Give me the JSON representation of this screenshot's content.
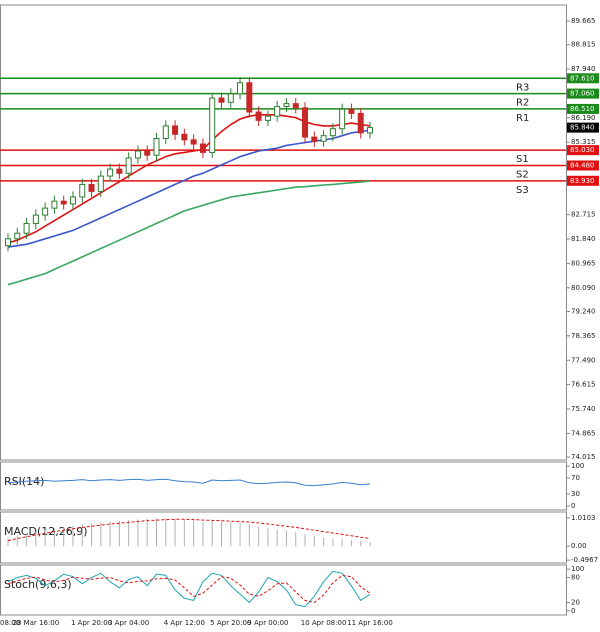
{
  "chart_data": [
    {
      "type": "candlestick",
      "categories": [
        "08:00",
        null,
        null,
        "28 Mar 16:00",
        null,
        null,
        null,
        null,
        null,
        "1 Apr 20:00",
        null,
        null,
        null,
        "3 Apr 04:00",
        null,
        null,
        null,
        null,
        null,
        "4 Apr 12:00",
        null,
        null,
        null,
        null,
        "5 Apr 20:00",
        null,
        null,
        null,
        "9 Apr 00:00",
        null,
        null,
        null,
        null,
        null,
        "10 Apr 08:00",
        null,
        null,
        null,
        null,
        "11 Apr 16:00"
      ],
      "open": [
        81.6,
        81.85,
        82.05,
        82.4,
        82.7,
        82.95,
        83.2,
        83.1,
        83.35,
        83.8,
        83.55,
        84.1,
        84.35,
        84.2,
        84.75,
        85.0,
        84.85,
        85.45,
        85.9,
        85.6,
        85.4,
        85.25,
        84.95,
        86.9,
        86.75,
        87.05,
        87.45,
        86.4,
        86.1,
        86.25,
        86.6,
        86.7,
        86.55,
        85.5,
        85.35,
        85.55,
        85.8,
        86.5,
        86.35,
        85.65
      ],
      "high": [
        82.05,
        82.25,
        82.6,
        82.9,
        83.15,
        83.4,
        83.4,
        83.55,
        84.0,
        84.0,
        84.3,
        84.55,
        84.55,
        84.95,
        85.2,
        85.2,
        85.65,
        86.1,
        86.1,
        85.8,
        85.6,
        85.45,
        87.1,
        87.1,
        87.25,
        87.65,
        87.65,
        86.6,
        86.45,
        86.8,
        86.9,
        86.9,
        86.75,
        85.7,
        85.75,
        86.0,
        86.7,
        86.7,
        86.55,
        86.04
      ],
      "low": [
        81.4,
        81.65,
        81.85,
        82.2,
        82.5,
        82.75,
        82.9,
        82.9,
        83.15,
        83.35,
        83.35,
        83.9,
        84.0,
        84.0,
        84.55,
        84.65,
        84.65,
        85.25,
        85.4,
        85.2,
        85.05,
        84.75,
        84.75,
        86.55,
        86.55,
        86.85,
        86.2,
        85.9,
        85.9,
        86.05,
        86.4,
        86.35,
        85.3,
        85.15,
        85.15,
        85.35,
        85.6,
        86.15,
        85.45,
        85.45
      ],
      "close": [
        81.85,
        82.05,
        82.4,
        82.7,
        82.95,
        83.2,
        83.1,
        83.35,
        83.8,
        83.55,
        84.1,
        84.35,
        84.2,
        84.75,
        85.0,
        84.85,
        85.45,
        85.9,
        85.6,
        85.4,
        85.25,
        84.95,
        86.9,
        86.75,
        87.05,
        87.45,
        86.4,
        86.1,
        86.25,
        86.6,
        86.7,
        86.55,
        85.5,
        85.35,
        85.55,
        85.8,
        86.5,
        86.35,
        85.65,
        85.84
      ],
      "up_color": "#2e7d32",
      "down_color": "#c62828",
      "series": [
        {
          "color": "#e01010",
          "values": [
            81.7,
            81.8,
            81.95,
            82.1,
            82.3,
            82.5,
            82.7,
            82.9,
            83.1,
            83.3,
            83.5,
            83.7,
            83.9,
            84.1,
            84.3,
            84.5,
            84.65,
            84.8,
            84.9,
            84.95,
            85.0,
            85.05,
            85.4,
            85.7,
            85.95,
            86.15,
            86.25,
            86.3,
            86.3,
            86.3,
            86.25,
            86.2,
            86.05,
            85.95,
            85.9,
            85.9,
            85.95,
            86.0,
            85.95,
            85.9
          ]
        },
        {
          "color": "#3a55cc",
          "values": [
            81.55,
            81.6,
            81.65,
            81.75,
            81.85,
            81.95,
            82.05,
            82.15,
            82.3,
            82.45,
            82.6,
            82.75,
            82.9,
            83.05,
            83.2,
            83.35,
            83.5,
            83.65,
            83.8,
            83.95,
            84.1,
            84.2,
            84.35,
            84.5,
            84.65,
            84.8,
            84.9,
            85.0,
            85.05,
            85.1,
            85.2,
            85.25,
            85.3,
            85.35,
            85.4,
            85.45,
            85.55,
            85.65,
            85.7,
            85.75
          ]
        },
        {
          "color": "#3aa860",
          "values": [
            80.2,
            80.3,
            80.4,
            80.5,
            80.6,
            80.75,
            80.9,
            81.05,
            81.2,
            81.35,
            81.5,
            81.65,
            81.8,
            81.95,
            82.1,
            82.25,
            82.4,
            82.55,
            82.7,
            82.85,
            82.95,
            83.05,
            83.15,
            83.25,
            83.35,
            83.4,
            83.45,
            83.5,
            83.55,
            83.6,
            83.65,
            83.7,
            83.72,
            83.75,
            83.78,
            83.8,
            83.83,
            83.86,
            83.89,
            83.92
          ]
        }
      ],
      "levels": [
        {
          "name": "R3",
          "value": 87.61,
          "label": "87.610",
          "color": "#1a8a1a"
        },
        {
          "name": "R2",
          "value": 87.06,
          "label": "87.060",
          "color": "#1a8a1a"
        },
        {
          "name": "R1",
          "value": 86.51,
          "label": "86.510",
          "color": "#1a8a1a"
        },
        {
          "name": "S1",
          "value": 85.03,
          "label": "85.030",
          "color": "#e01010"
        },
        {
          "name": "S2",
          "value": 84.48,
          "label": "84.480",
          "color": "#e01010"
        },
        {
          "name": "S3",
          "value": 83.93,
          "label": "83.930",
          "color": "#e01010"
        }
      ],
      "last": {
        "value": 85.84,
        "label": "85.840",
        "color": "#000000"
      },
      "ylim": [
        73.91,
        90.24
      ],
      "yticks": [
        89.665,
        88.815,
        {
          "value": 87.94,
          "label": "87.940"
        },
        {
          "value": 86.19,
          "label": "86.190"
        },
        85.315,
        82.715,
        {
          "value": 81.84,
          "label": "81.840"
        },
        80.965,
        {
          "value": 80.09,
          "label": "80.090"
        },
        {
          "value": 79.24,
          "label": "79.240"
        },
        78.365,
        {
          "value": 77.49,
          "label": "77.490"
        },
        76.615,
        {
          "value": 75.74,
          "label": "75.740"
        },
        74.865,
        74.015
      ]
    },
    {
      "type": "line",
      "title": "RSI(14)",
      "series": [
        {
          "color": "#3a7fd0",
          "values": [
            58,
            60,
            62,
            63,
            64,
            62,
            63,
            64,
            66,
            63,
            65,
            66,
            64,
            66,
            67,
            64,
            66,
            67,
            63,
            61,
            60,
            57,
            65,
            63,
            64,
            65,
            58,
            56,
            57,
            59,
            60,
            58,
            52,
            51,
            53,
            55,
            59,
            57,
            53,
            55
          ]
        }
      ],
      "ylim": [
        -10,
        110
      ],
      "yticks": [
        100,
        70,
        30,
        0
      ]
    },
    {
      "type": "macd",
      "title": "MACD(12,26,9)",
      "values": [
        0.3,
        0.38,
        0.45,
        0.52,
        0.58,
        0.64,
        0.68,
        0.72,
        0.78,
        0.8,
        0.85,
        0.88,
        0.9,
        0.93,
        0.96,
        0.97,
        0.99,
        1.0,
        0.98,
        0.95,
        0.92,
        0.88,
        0.9,
        0.88,
        0.86,
        0.85,
        0.78,
        0.7,
        0.64,
        0.6,
        0.56,
        0.5,
        0.42,
        0.35,
        0.3,
        0.26,
        0.25,
        0.22,
        0.18,
        0.15
      ],
      "color": "#b0b0b0",
      "series": [
        {
          "color": "#e01010",
          "values": [
            0.2,
            0.27,
            0.34,
            0.4,
            0.46,
            0.52,
            0.57,
            0.62,
            0.67,
            0.71,
            0.75,
            0.79,
            0.82,
            0.85,
            0.88,
            0.91,
            0.93,
            0.95,
            0.96,
            0.96,
            0.95,
            0.93,
            0.92,
            0.91,
            0.89,
            0.88,
            0.86,
            0.83,
            0.79,
            0.75,
            0.71,
            0.67,
            0.62,
            0.57,
            0.52,
            0.47,
            0.42,
            0.37,
            0.32,
            0.28
          ]
        }
      ],
      "ylim": [
        -0.6,
        1.22
      ],
      "yticks": [
        1.0103,
        {
          "value": 0,
          "label": "0.00"
        },
        -0.4967
      ]
    },
    {
      "type": "line",
      "title": "Stoch(9,6,3)",
      "series": [
        {
          "color": "#1fa5b5",
          "values": [
            70,
            80,
            85,
            78,
            60,
            72,
            88,
            82,
            65,
            80,
            90,
            70,
            55,
            75,
            82,
            60,
            88,
            85,
            50,
            30,
            25,
            70,
            90,
            85,
            60,
            40,
            20,
            45,
            80,
            70,
            50,
            15,
            10,
            35,
            70,
            95,
            90,
            60,
            25,
            40
          ]
        },
        {
          "color": "#e01010",
          "dashed": true,
          "values": [
            65,
            72,
            78,
            81,
            74,
            70,
            73,
            81,
            78,
            76,
            78,
            80,
            72,
            67,
            71,
            72,
            77,
            78,
            74,
            55,
            35,
            42,
            62,
            82,
            78,
            62,
            40,
            35,
            48,
            65,
            67,
            45,
            25,
            20,
            38,
            67,
            85,
            82,
            58,
            42
          ]
        }
      ],
      "ylim": [
        -10,
        110
      ],
      "yticks": [
        100,
        80,
        20,
        0
      ]
    }
  ]
}
